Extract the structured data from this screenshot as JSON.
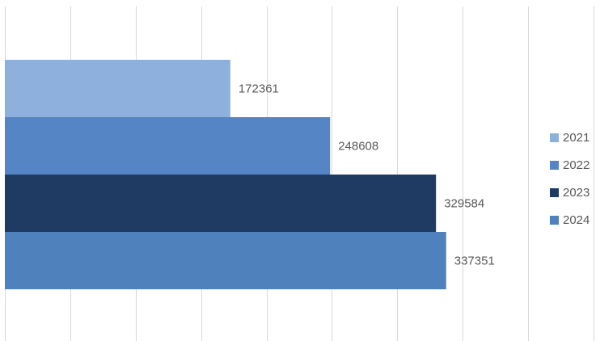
{
  "chart_data": {
    "type": "bar",
    "orientation": "horizontal",
    "categories": [
      ""
    ],
    "series": [
      {
        "name": "2021",
        "values": [
          172361
        ],
        "color": "#8eb0dc"
      },
      {
        "name": "2022",
        "values": [
          248608
        ],
        "color": "#5585c5"
      },
      {
        "name": "2023",
        "values": [
          329584
        ],
        "color": "#1f3a63"
      },
      {
        "name": "2024",
        "values": [
          337351
        ],
        "color": "#4f81bd"
      }
    ],
    "title": "",
    "xlabel": "",
    "ylabel": "",
    "xlim": [
      0,
      450000
    ],
    "grid": true,
    "legend": "right",
    "data_labels": true
  }
}
